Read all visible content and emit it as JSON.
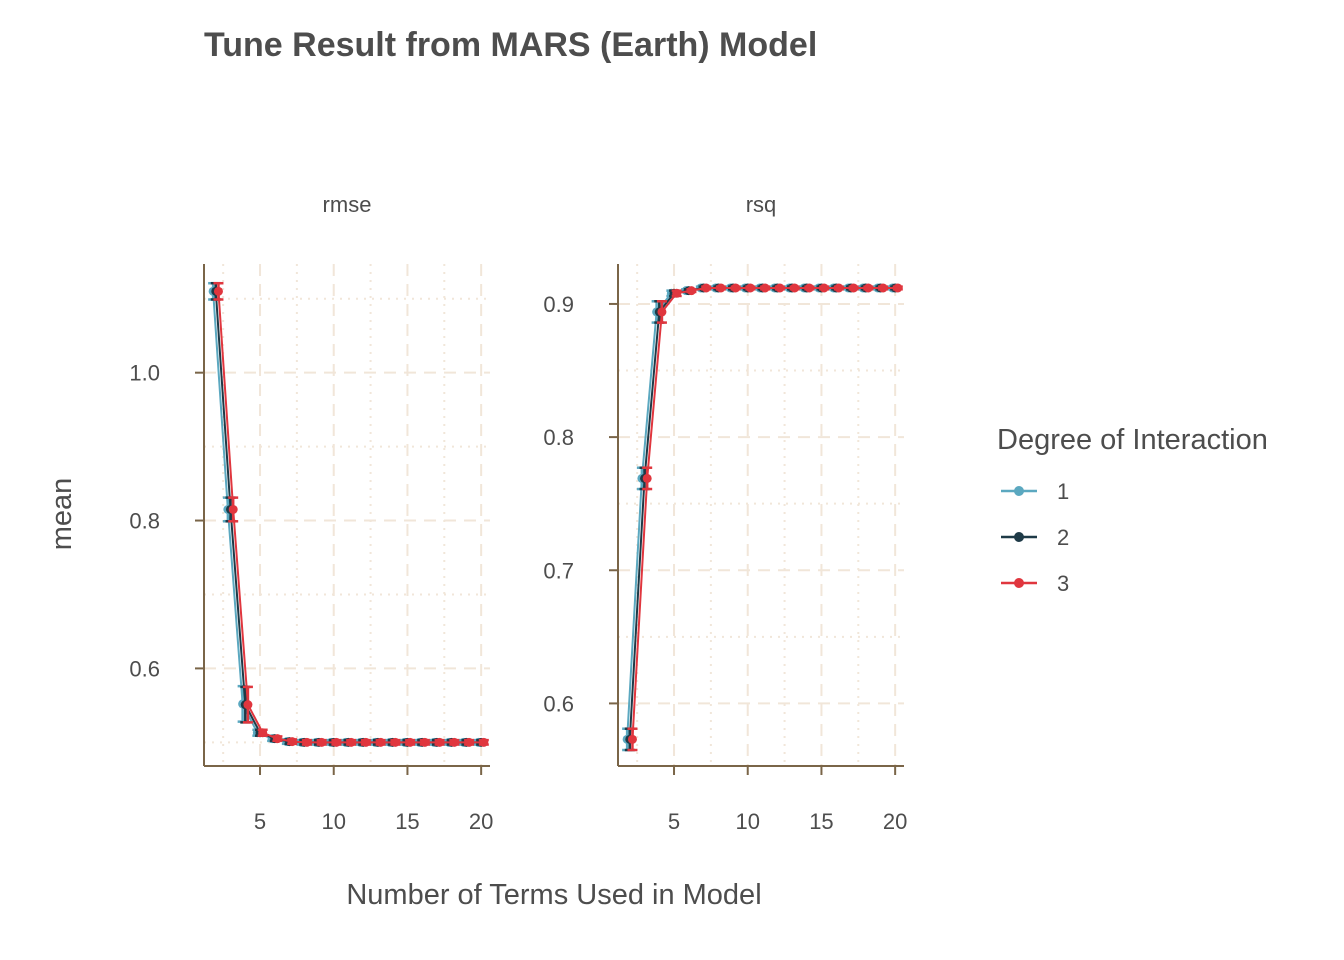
{
  "colors": {
    "degree_1": "#5ba8c0",
    "degree_2": "#1e3a47",
    "degree_3": "#e0363e",
    "axis": "#7a6548",
    "grid": "#f1e6d9",
    "text": "#4d4d4d"
  },
  "chart_data": {
    "type": "scatter",
    "title": "Tune Result from MARS (Earth) Model",
    "xlabel": "Number of Terms Used in Model",
    "ylabel": "mean",
    "legend": {
      "title": "Degree of Interaction",
      "position": "right",
      "entries": [
        "1",
        "2",
        "3"
      ]
    },
    "grid": true,
    "x": [
      2,
      3,
      4,
      5,
      6,
      7,
      8,
      9,
      10,
      11,
      12,
      13,
      14,
      15,
      16,
      17,
      18,
      19,
      20
    ],
    "xlim": [
      1.2,
      20.6
    ],
    "x_ticks": [
      5,
      10,
      15,
      20
    ],
    "panels": [
      {
        "name": "rmse",
        "ylim": [
          0.468,
          1.147
        ],
        "y_ticks": [
          0.6,
          0.8,
          1.0
        ],
        "y_tick_labels": [
          "0.6",
          "0.8",
          "1.0"
        ],
        "series": [
          {
            "name": "1",
            "values": [
              1.11,
              0.815,
              0.552,
              0.513,
              0.505,
              0.501,
              0.5,
              0.5,
              0.5,
              0.5,
              0.5,
              0.5,
              0.5,
              0.5,
              0.5,
              0.5,
              0.5,
              0.5,
              0.5
            ],
            "errors": [
              0.011,
              0.016,
              0.024,
              0.004,
              0.003,
              0.003,
              0.003,
              0.003,
              0.003,
              0.003,
              0.003,
              0.003,
              0.003,
              0.003,
              0.003,
              0.003,
              0.003,
              0.003,
              0.003
            ]
          },
          {
            "name": "2",
            "values": [
              1.11,
              0.815,
              0.551,
              0.513,
              0.505,
              0.501,
              0.5,
              0.5,
              0.5,
              0.5,
              0.5,
              0.5,
              0.5,
              0.5,
              0.5,
              0.5,
              0.5,
              0.5,
              0.5
            ],
            "errors": [
              0.011,
              0.016,
              0.024,
              0.004,
              0.003,
              0.003,
              0.003,
              0.003,
              0.003,
              0.003,
              0.003,
              0.003,
              0.003,
              0.003,
              0.003,
              0.003,
              0.003,
              0.003,
              0.003
            ]
          },
          {
            "name": "3",
            "values": [
              1.11,
              0.815,
              0.551,
              0.513,
              0.505,
              0.501,
              0.5,
              0.5,
              0.5,
              0.5,
              0.5,
              0.5,
              0.5,
              0.5,
              0.5,
              0.5,
              0.5,
              0.5,
              0.5
            ],
            "errors": [
              0.011,
              0.016,
              0.024,
              0.004,
              0.003,
              0.003,
              0.003,
              0.003,
              0.003,
              0.003,
              0.003,
              0.003,
              0.003,
              0.003,
              0.003,
              0.003,
              0.003,
              0.003,
              0.003
            ]
          }
        ]
      },
      {
        "name": "rsq",
        "ylim": [
          0.553,
          0.93
        ],
        "y_ticks": [
          0.6,
          0.7,
          0.8,
          0.9
        ],
        "y_tick_labels": [
          "0.6",
          "0.7",
          "0.8",
          "0.9"
        ],
        "series": [
          {
            "name": "1",
            "values": [
              0.573,
              0.769,
              0.894,
              0.908,
              0.91,
              0.912,
              0.912,
              0.912,
              0.912,
              0.912,
              0.912,
              0.912,
              0.912,
              0.912,
              0.912,
              0.912,
              0.912,
              0.912,
              0.912
            ],
            "errors": [
              0.008,
              0.008,
              0.008,
              0.002,
              0.001,
              0.001,
              0.001,
              0.001,
              0.001,
              0.001,
              0.001,
              0.001,
              0.001,
              0.001,
              0.001,
              0.001,
              0.001,
              0.001,
              0.001
            ]
          },
          {
            "name": "2",
            "values": [
              0.573,
              0.769,
              0.894,
              0.908,
              0.91,
              0.912,
              0.912,
              0.912,
              0.912,
              0.912,
              0.912,
              0.912,
              0.912,
              0.912,
              0.912,
              0.912,
              0.912,
              0.912,
              0.912
            ],
            "errors": [
              0.008,
              0.008,
              0.008,
              0.002,
              0.001,
              0.001,
              0.001,
              0.001,
              0.001,
              0.001,
              0.001,
              0.001,
              0.001,
              0.001,
              0.001,
              0.001,
              0.001,
              0.001,
              0.001
            ]
          },
          {
            "name": "3",
            "values": [
              0.573,
              0.769,
              0.894,
              0.908,
              0.91,
              0.912,
              0.912,
              0.912,
              0.912,
              0.912,
              0.912,
              0.912,
              0.912,
              0.912,
              0.912,
              0.912,
              0.912,
              0.912,
              0.912
            ],
            "errors": [
              0.008,
              0.008,
              0.008,
              0.002,
              0.001,
              0.001,
              0.001,
              0.001,
              0.001,
              0.001,
              0.001,
              0.001,
              0.001,
              0.001,
              0.001,
              0.001,
              0.001,
              0.001,
              0.001
            ]
          }
        ]
      }
    ]
  }
}
